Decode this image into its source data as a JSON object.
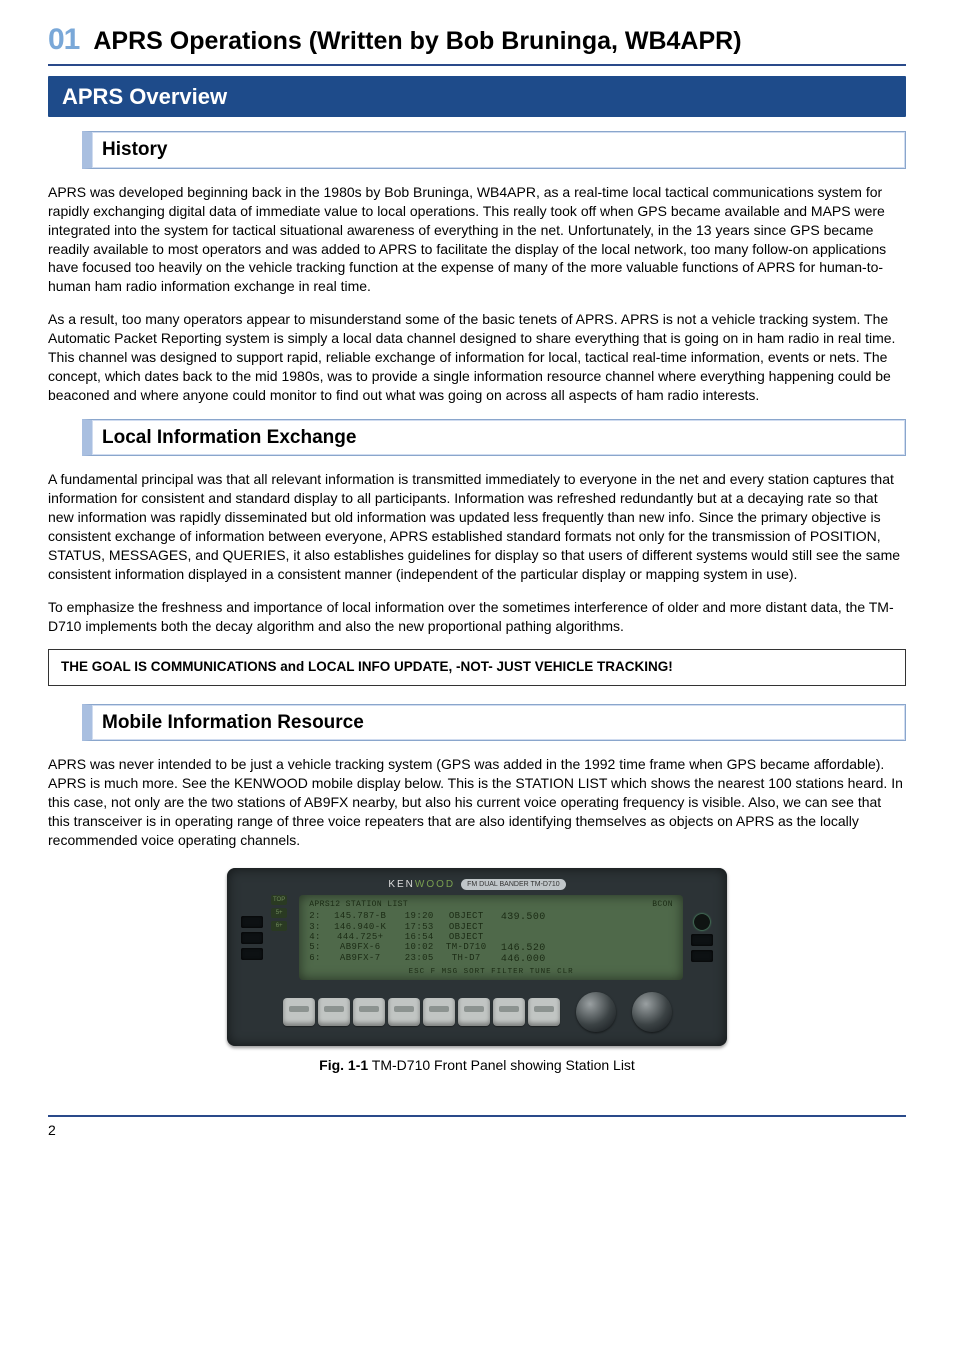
{
  "chapter": {
    "number": "01",
    "title": "APRS Operations (Written by Bob Bruninga, WB4APR)"
  },
  "section": {
    "title": "APRS Overview"
  },
  "history": {
    "heading": "History",
    "p1": "APRS was developed beginning back in the 1980s by Bob Bruninga, WB4APR, as a real-time local tactical communications system for rapidly exchanging digital data of immediate value to local operations.  This really took off when GPS became available and MAPS were integrated into the system for tactical situational awareness of everything in the net.  Unfortunately, in the 13 years since GPS became readily available to most operators and was added to APRS to facilitate the display of the local network, too many follow-on applications have focused too heavily on the vehicle tracking function at the expense of many of the more valuable functions of APRS for human-to-human ham radio information exchange in real time.",
    "p2": "As a result, too many operators appear to misunderstand some of the basic tenets of APRS.  APRS is not a vehicle tracking system.  The Automatic Packet Reporting system is simply a local data channel designed to share everything that is going on in ham radio in real time.  This channel was designed to support rapid, reliable exchange of information for local, tactical real-time information, events or nets.  The concept, which dates back to the mid 1980s, was to provide a single information resource channel where everything happening could be beaconed and where anyone could monitor to find out what was going on across all aspects of ham radio interests."
  },
  "localinfo": {
    "heading": "Local Information Exchange",
    "p1": "A fundamental principal was that all relevant information is transmitted immediately to everyone in the net and every station captures that information for consistent and standard display to all participants.  Information was refreshed redundantly but at a decaying rate so that new information was rapidly disseminated but old information was updated less frequently than new info.  Since the primary objective is consistent exchange of information between everyone, APRS established standard formats not only for the transmission of POSITION, STATUS, MESSAGES, and QUERIES, it also establishes guidelines for display so that users of different systems would still see the same consistent information displayed in a consistent manner (independent of the particular display or mapping system in use).",
    "p2": "To emphasize the freshness and importance of local information over the sometimes interference of older and more distant data, the TM-D710 implements both the decay algorithm and also the new proportional pathing algorithms.",
    "goal": "THE GOAL IS COMMUNICATIONS and LOCAL INFO UPDATE, -NOT- JUST VEHICLE TRACKING!"
  },
  "mobile": {
    "heading": "Mobile Information Resource",
    "p1": "APRS was never intended to be just a vehicle tracking system (GPS was added in the 1992 time frame when GPS became affordable).  APRS is much more.  See the KENWOOD mobile display below.  This is the STATION LIST which shows the nearest 100 stations heard.  In this case, not only are the two stations of AB9FX nearby, but also his current voice operating frequency is visible.  Also, we can see that this transceiver is in operating range of three voice repeaters that are also identifying themselves as objects on APRS as the locally recommended voice operating channels."
  },
  "radio": {
    "brand_prefix": "KEN",
    "brand_suffix": "WOOD",
    "model": "FM DUAL BANDER TM-D710",
    "lcd": {
      "header_left": "APRS12  STATION LIST",
      "header_right": "BCON",
      "freq_big1": "439.500",
      "freq_big2a": "146.520",
      "freq_big2b": "446.000",
      "rows": [
        {
          "n": "2:",
          "call": "145.787-B",
          "time": "19:20",
          "type": "OBJECT"
        },
        {
          "n": "3:",
          "call": "146.940-K",
          "time": "17:53",
          "type": "OBJECT"
        },
        {
          "n": "4:",
          "call": "444.725+",
          "time": "16:54",
          "type": "OBJECT"
        },
        {
          "n": "5:",
          "call": "AB9FX-6",
          "time": "10:02",
          "type": "TM-D710"
        },
        {
          "n": "6:",
          "call": "AB9FX-7",
          "time": "23:05",
          "type": "TH-D7"
        }
      ],
      "footer": "ESC  F   MSG SORT FILTER TUNE CLR",
      "icons": [
        "TOP",
        "5+",
        "6+"
      ]
    }
  },
  "figure": {
    "label": "Fig. 1-1",
    "caption": " TM-D710 Front Panel showing Station List"
  },
  "page_number": "2",
  "colors": {
    "rule": "#2a4a8a",
    "section_bg": "#1e4b8a",
    "sub_border": "#a9bfe0",
    "chapter_num": "#7aa8d8",
    "lcd_bg": "#4f694a",
    "radio_body": "#2c3336"
  }
}
